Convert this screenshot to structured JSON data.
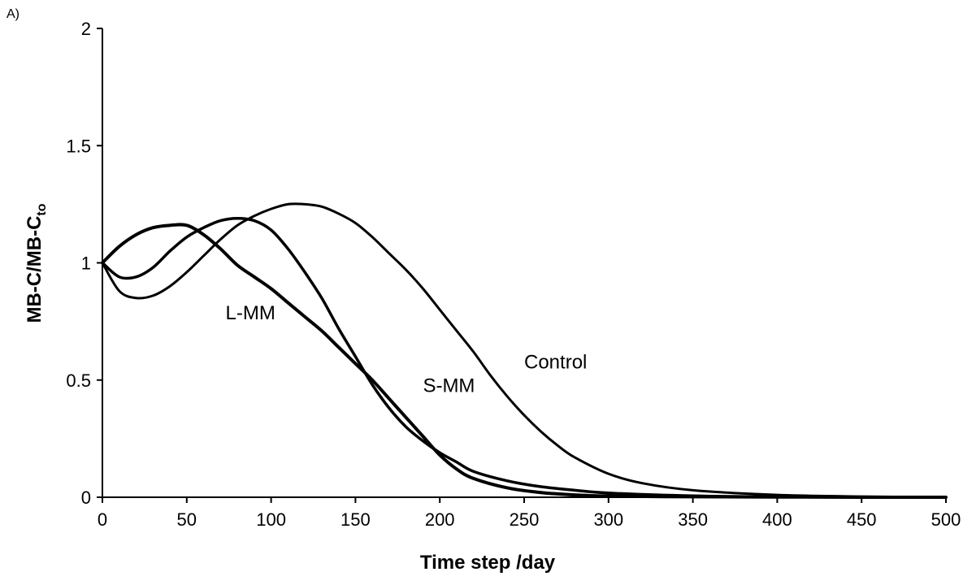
{
  "panel_label": "A)",
  "chart_data": {
    "type": "line",
    "title": "",
    "xlabel": "Time step /day",
    "ylabel_main": "MB-C/MB-C",
    "ylabel_sub": "to",
    "xlim": [
      0,
      500
    ],
    "ylim": [
      0,
      2
    ],
    "x_ticks": [
      0,
      50,
      100,
      150,
      200,
      250,
      300,
      350,
      400,
      450,
      500
    ],
    "x_tick_labels": [
      "0",
      "50",
      "100",
      "150",
      "200",
      "250",
      "300",
      "350",
      "400",
      "450",
      "500"
    ],
    "y_ticks": [
      0,
      0.5,
      1,
      1.5,
      2
    ],
    "y_tick_labels": [
      "0",
      "0.5",
      "1",
      "1.5",
      "2"
    ],
    "grid": false,
    "legend": "none",
    "line_color": "#000000",
    "series": [
      {
        "name": "L-MM",
        "x": [
          0,
          10,
          20,
          30,
          40,
          50,
          60,
          70,
          80,
          90,
          100,
          110,
          120,
          130,
          140,
          150,
          160,
          170,
          180,
          190,
          200,
          210,
          220,
          240,
          260,
          280,
          300,
          350,
          400,
          450,
          500
        ],
        "y": [
          1.0,
          1.07,
          1.12,
          1.15,
          1.16,
          1.16,
          1.12,
          1.06,
          0.99,
          0.94,
          0.89,
          0.83,
          0.77,
          0.71,
          0.64,
          0.57,
          0.5,
          0.42,
          0.34,
          0.26,
          0.18,
          0.12,
          0.08,
          0.04,
          0.02,
          0.01,
          0.005,
          0.002,
          0.001,
          0.0,
          0.0
        ]
      },
      {
        "name": "S-MM",
        "x": [
          0,
          10,
          20,
          30,
          40,
          50,
          60,
          70,
          80,
          90,
          100,
          110,
          120,
          130,
          140,
          150,
          160,
          170,
          180,
          190,
          200,
          210,
          220,
          240,
          260,
          280,
          300,
          350,
          400,
          450,
          500
        ],
        "y": [
          1.0,
          0.94,
          0.94,
          0.98,
          1.05,
          1.11,
          1.15,
          1.18,
          1.19,
          1.18,
          1.14,
          1.06,
          0.96,
          0.85,
          0.72,
          0.6,
          0.48,
          0.38,
          0.3,
          0.24,
          0.19,
          0.15,
          0.11,
          0.07,
          0.045,
          0.03,
          0.018,
          0.006,
          0.002,
          0.001,
          0.0
        ]
      },
      {
        "name": "Control",
        "x": [
          0,
          10,
          20,
          30,
          40,
          50,
          60,
          70,
          80,
          90,
          100,
          110,
          120,
          130,
          140,
          150,
          160,
          170,
          180,
          190,
          200,
          210,
          220,
          230,
          240,
          250,
          260,
          270,
          280,
          300,
          320,
          350,
          400,
          450,
          500
        ],
        "y": [
          1.0,
          0.88,
          0.85,
          0.86,
          0.9,
          0.96,
          1.03,
          1.1,
          1.16,
          1.2,
          1.23,
          1.25,
          1.25,
          1.24,
          1.21,
          1.17,
          1.11,
          1.04,
          0.97,
          0.89,
          0.8,
          0.71,
          0.62,
          0.52,
          0.43,
          0.35,
          0.28,
          0.22,
          0.17,
          0.1,
          0.06,
          0.03,
          0.01,
          0.003,
          0.0
        ]
      }
    ],
    "annotations": [
      {
        "text": "L-MM",
        "x": 73,
        "y": 0.79
      },
      {
        "text": "S-MM",
        "x": 190,
        "y": 0.48
      },
      {
        "text": "Control",
        "x": 250,
        "y": 0.58
      }
    ]
  }
}
